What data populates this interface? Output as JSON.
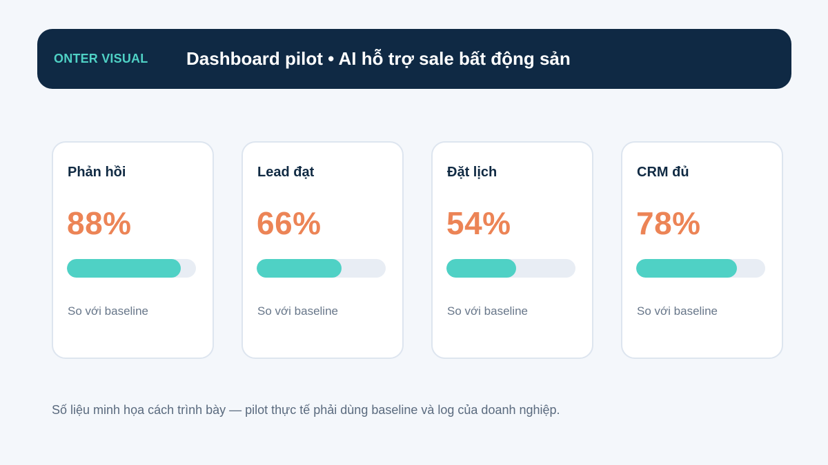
{
  "header": {
    "brand": "ONTER VISUAL",
    "title": "Dashboard pilot • AI hỗ trợ sale bất động sản"
  },
  "colors": {
    "header_bg": "#0f2944",
    "accent": "#4fd1c5",
    "value": "#ec8456",
    "track": "#e8edf4"
  },
  "cards": [
    {
      "label": "Phản hồi",
      "value": "88%",
      "progress": 0.88,
      "note": "So với baseline"
    },
    {
      "label": "Lead đạt",
      "value": "66%",
      "progress": 0.66,
      "note": "So với baseline"
    },
    {
      "label": "Đặt lịch",
      "value": "54%",
      "progress": 0.54,
      "note": "So với baseline"
    },
    {
      "label": "CRM đủ",
      "value": "78%",
      "progress": 0.78,
      "note": "So với baseline"
    }
  ],
  "footnote": "Số liệu minh họa cách trình bày — pilot thực tế phải dùng baseline và log của doanh nghiệp."
}
